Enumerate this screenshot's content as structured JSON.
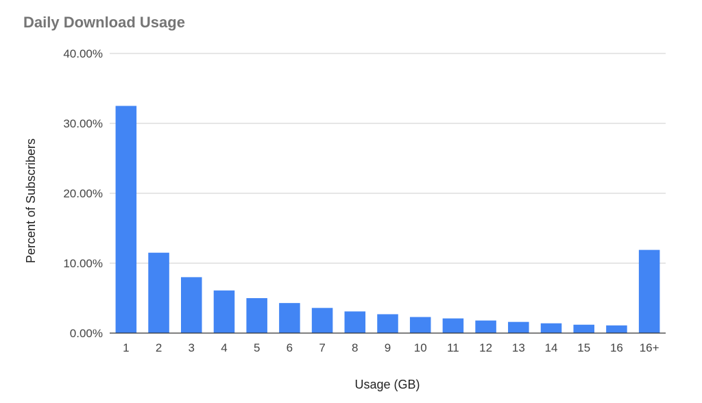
{
  "chart_data": {
    "type": "bar",
    "title": "Daily Download Usage",
    "xlabel": "Usage (GB)",
    "ylabel": "Percent of Subscribers",
    "categories": [
      "1",
      "2",
      "3",
      "4",
      "5",
      "6",
      "7",
      "8",
      "9",
      "10",
      "11",
      "12",
      "13",
      "14",
      "15",
      "16",
      "16+"
    ],
    "values": [
      32.5,
      11.5,
      8.0,
      6.1,
      5.0,
      4.3,
      3.6,
      3.1,
      2.7,
      2.3,
      2.1,
      1.8,
      1.6,
      1.4,
      1.2,
      1.1,
      11.9
    ],
    "ylim": [
      0,
      40
    ],
    "yticks": [
      0,
      10,
      20,
      30,
      40
    ],
    "ytick_labels": [
      "0.00%",
      "10.00%",
      "20.00%",
      "30.00%",
      "40.00%"
    ],
    "grid": true,
    "legend": "none",
    "bar_color": "#4285f4"
  }
}
